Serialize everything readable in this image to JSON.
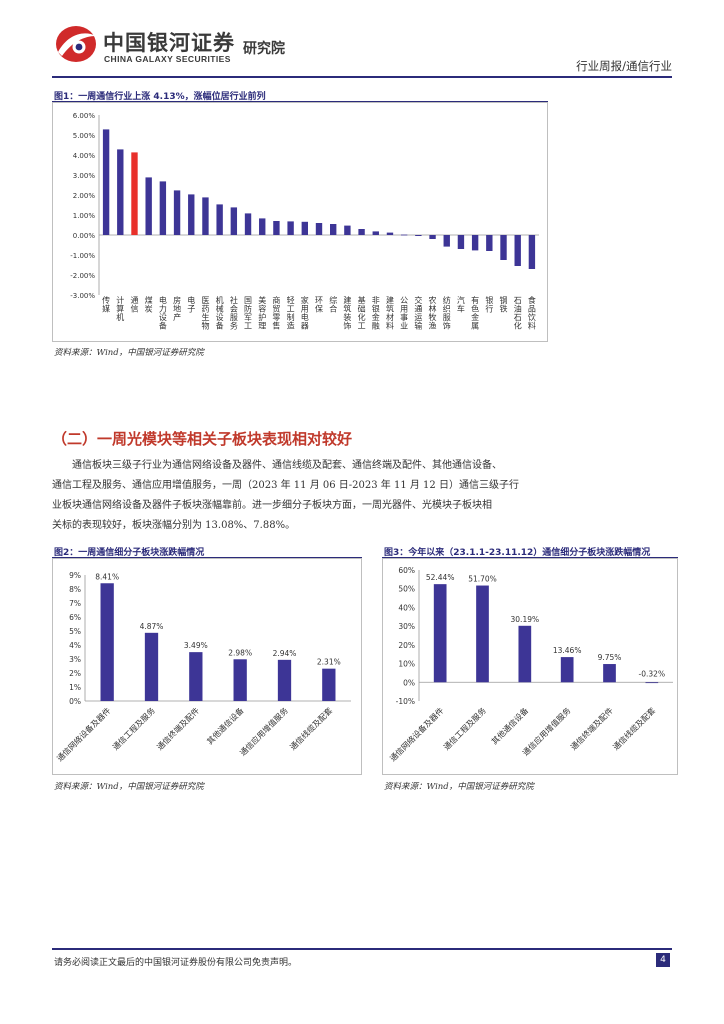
{
  "header": {
    "logo_cn": "中国银河证券",
    "logo_en": "CHINA GALAXY SECURITIES",
    "institute": "研究院",
    "right_label": "行业周报/通信行业"
  },
  "fig1": {
    "title": "图1：一周通信行业上涨 4.13%，涨幅位居行业前列",
    "source": "资料来源：Wind，中国银河证券研究院"
  },
  "section": {
    "title": "（二）一周光模块等相关子板块表现相对较好",
    "paragraph_lines": [
      "通信板块三级子行业为通信网络设备及器件、通信线缆及配套、通信终端及配件、其他通信设备、",
      "通信工程及服务、通信应用增值服务，一周（2023 年 11 月 06 日-2023 年 11 月 12 日）通信三级子行",
      "业板块通信网络设备及器件子板块涨幅靠前。进一步细分子板块方面，一周光器件、光模块子板块相",
      "关标的表现较好，板块涨幅分别为 13.08%、7.88%。"
    ]
  },
  "fig2": {
    "title": "图2：一周通信细分子板块涨跌幅情况",
    "source": "资料来源：Wind，中国银河证券研究院"
  },
  "fig3": {
    "title": "图3：今年以来（23.1.1-23.11.12）通信细分子板块涨跌幅情况",
    "source": "资料来源：Wind，中国银河证券研究院"
  },
  "footer": {
    "disclaimer": "请务必阅读正文最后的中国银河证券股份有限公司免责声明。",
    "page_number": "4"
  },
  "colors": {
    "bar": "#3d3596",
    "highlight": "#e8302b",
    "accent": "#2b2b7a"
  },
  "chart_data": [
    {
      "type": "bar",
      "title": "图1：一周通信行业上涨 4.13%，涨幅位居行业前列",
      "categories": [
        "传媒",
        "计算机",
        "通信",
        "煤炭",
        "电力设备",
        "房地产",
        "电子",
        "医药生物",
        "机械设备",
        "社会服务",
        "国防军工",
        "美容护理",
        "商贸零售",
        "轻工制造",
        "家用电器",
        "环保",
        "综合",
        "建筑装饰",
        "基础化工",
        "非银金融",
        "建筑材料",
        "公用事业",
        "交通运输",
        "农林牧渔",
        "纺织服饰",
        "汽车",
        "有色金属",
        "银行",
        "钢铁",
        "石油石化",
        "食品饮料"
      ],
      "values": [
        5.28,
        4.28,
        4.13,
        2.88,
        2.68,
        2.23,
        2.03,
        1.88,
        1.53,
        1.38,
        1.08,
        0.83,
        0.7,
        0.68,
        0.66,
        0.6,
        0.55,
        0.47,
        0.3,
        0.18,
        0.12,
        0.02,
        -0.05,
        -0.2,
        -0.58,
        -0.7,
        -0.77,
        -0.8,
        -1.25,
        -1.55,
        -1.7
      ],
      "highlight_category": "通信",
      "ylim": [
        -3,
        6
      ],
      "yticks": [
        "6.00%",
        "5.00%",
        "4.00%",
        "3.00%",
        "2.00%",
        "1.00%",
        "0.00%",
        "-1.00%",
        "-2.00%",
        "-3.00%"
      ],
      "grid": false
    },
    {
      "type": "bar",
      "title": "图2：一周通信细分子板块涨跌幅情况",
      "categories": [
        "通信网络设备及器件",
        "通信工程及服务",
        "通信终端及配件",
        "其他通信设备",
        "通信应用增值服务",
        "通信线缆及配套"
      ],
      "values": [
        8.41,
        4.87,
        3.49,
        2.98,
        2.94,
        2.31
      ],
      "data_labels": [
        "8.41%",
        "4.87%",
        "3.49%",
        "2.98%",
        "2.94%",
        "2.31%"
      ],
      "ylim": [
        0,
        9
      ],
      "yticks": [
        "9%",
        "8%",
        "7%",
        "6%",
        "5%",
        "4%",
        "3%",
        "2%",
        "1%",
        "0%"
      ],
      "grid": false
    },
    {
      "type": "bar",
      "title": "图3：今年以来（23.1.1-23.11.12）通信细分子板块涨跌幅情况",
      "categories": [
        "通信网络设备及器件",
        "通信工程及服务",
        "其他通信设备",
        "通信应用增值服务",
        "通信终端及配件",
        "通信线缆及配套"
      ],
      "values": [
        52.44,
        51.7,
        30.19,
        13.46,
        9.75,
        -0.32
      ],
      "data_labels": [
        "52.44%",
        "51.70%",
        "30.19%",
        "13.46%",
        "9.75%",
        "-0.32%"
      ],
      "ylim": [
        -10,
        60
      ],
      "yticks": [
        "60%",
        "50%",
        "40%",
        "30%",
        "20%",
        "10%",
        "0%",
        "-10%"
      ],
      "grid": false
    }
  ]
}
